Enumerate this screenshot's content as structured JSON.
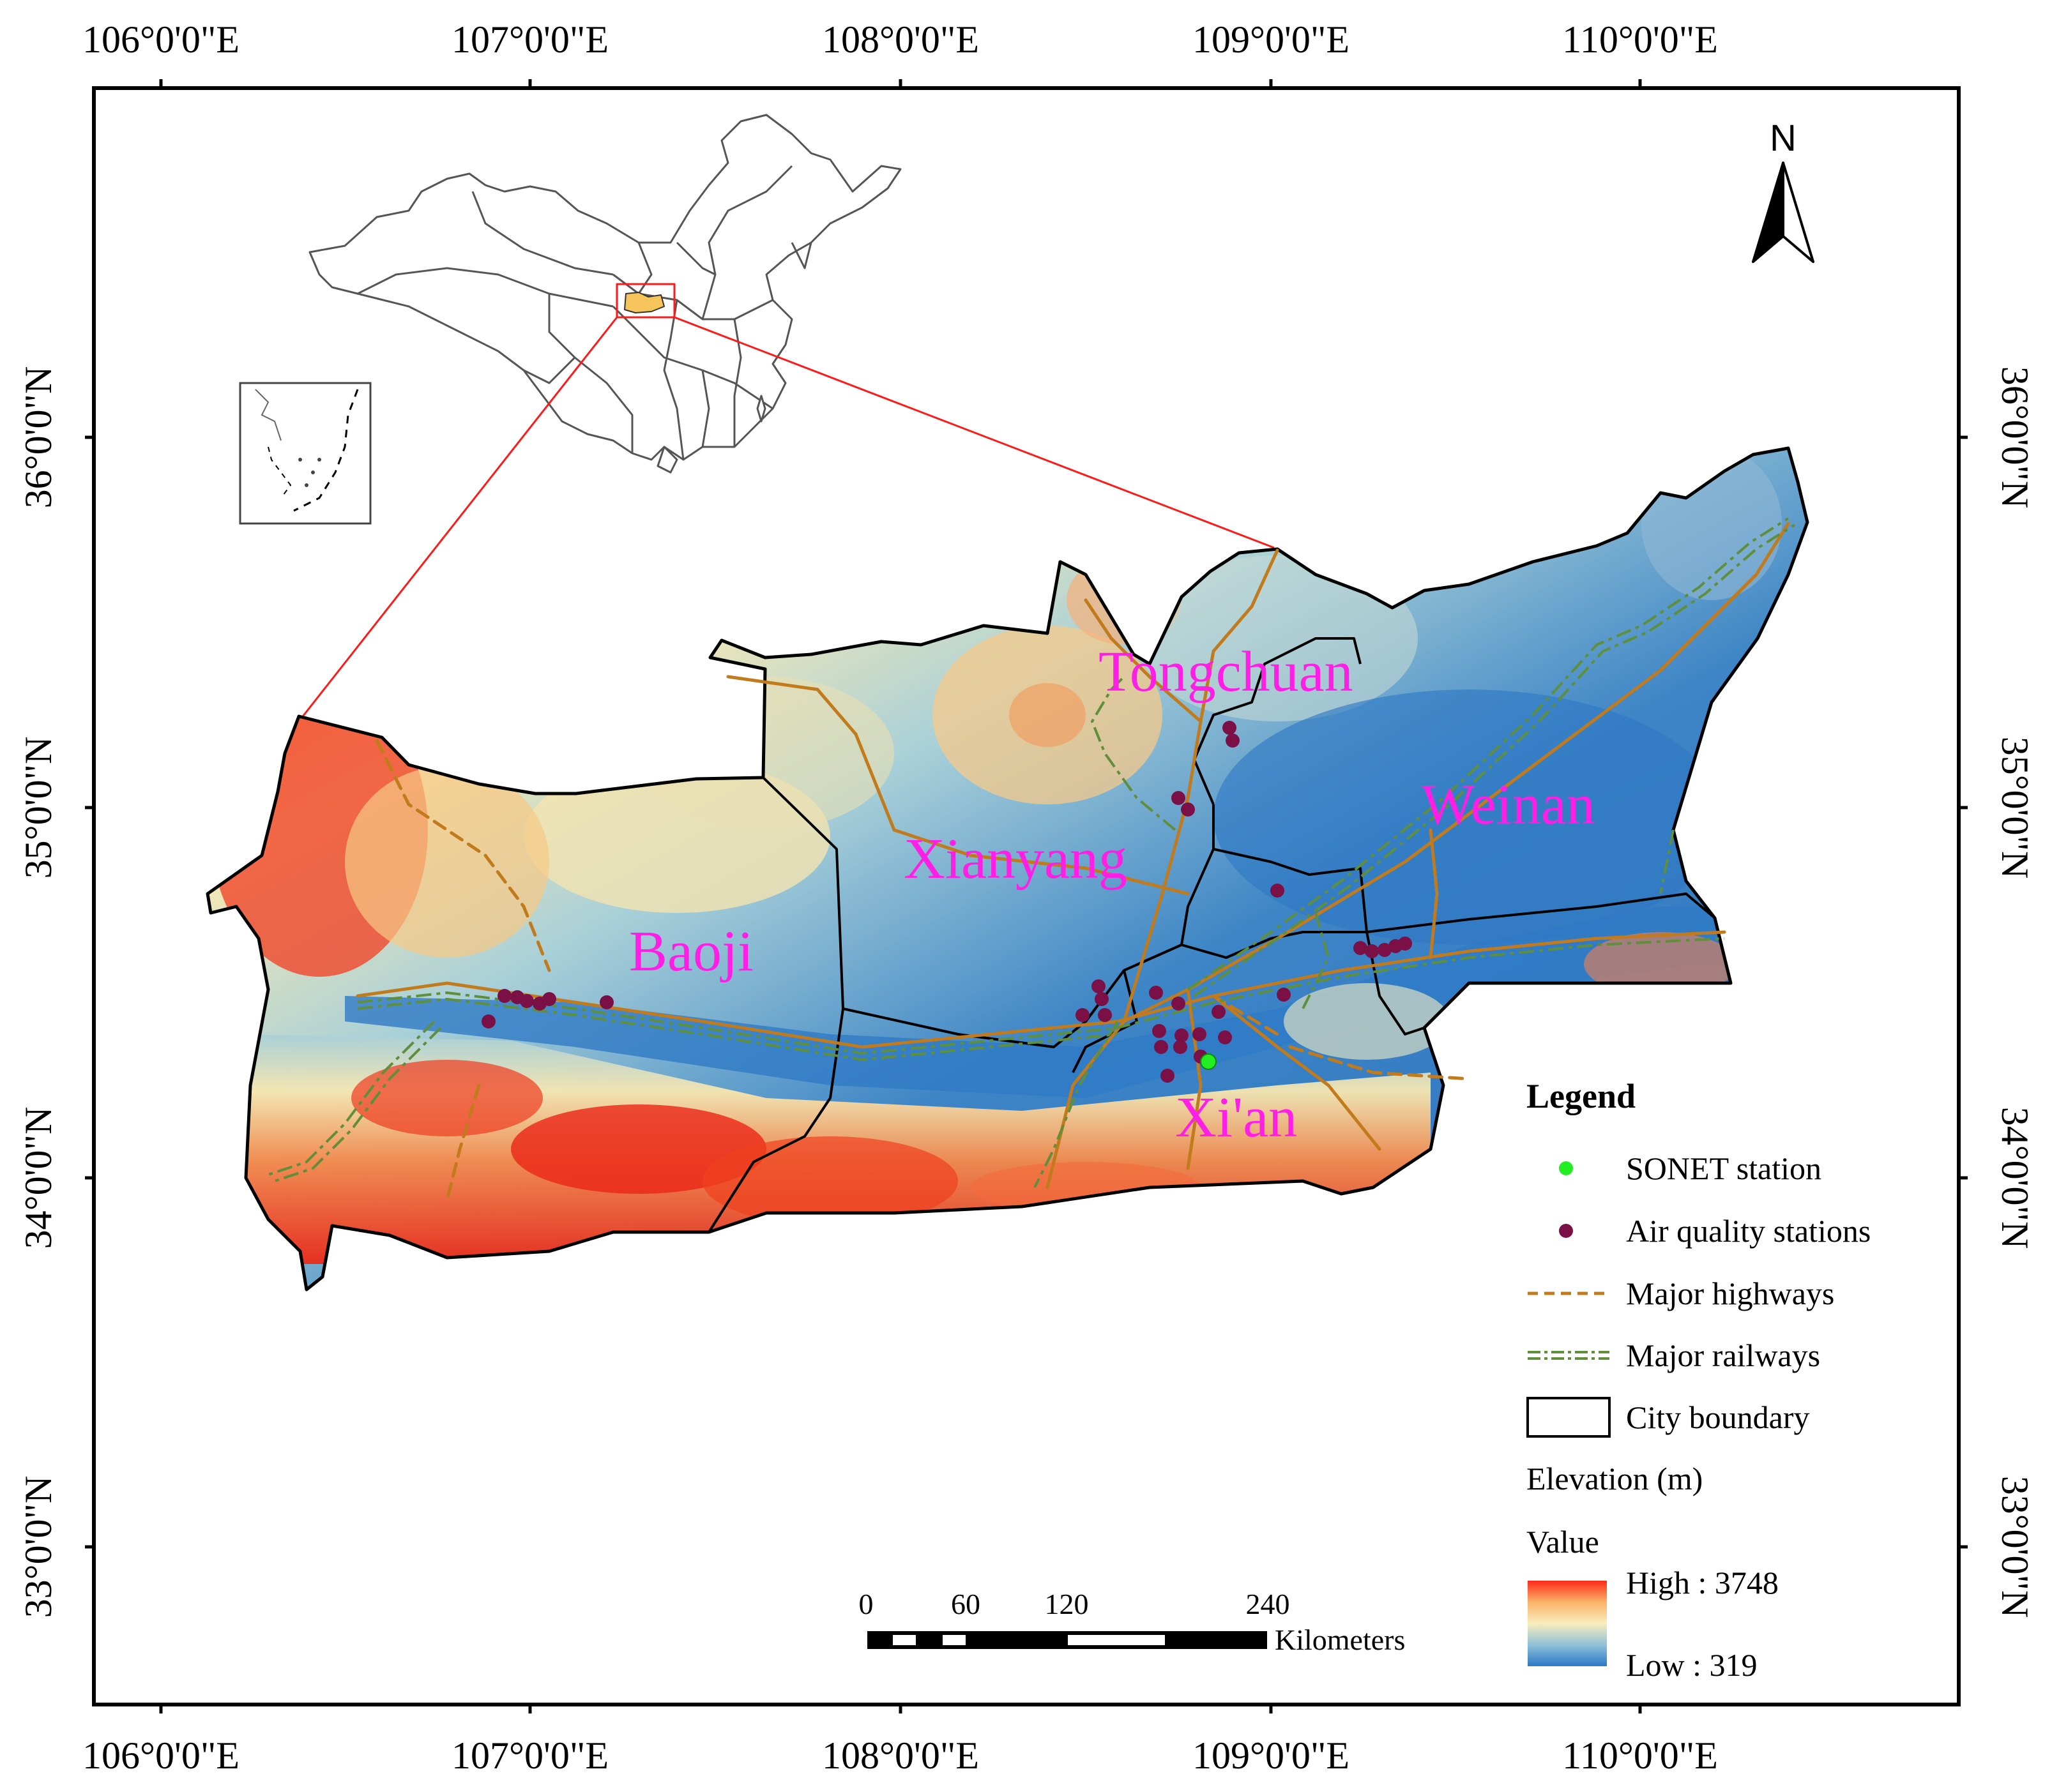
{
  "axes": {
    "longitude_labels": [
      "106°0'0\"E",
      "107°0'0\"E",
      "108°0'0\"E",
      "109°0'0\"E",
      "110°0'0\"E"
    ],
    "latitude_labels": [
      "36°0'0\"N",
      "35°0'0\"N",
      "34°0'0\"N",
      "33°0'0\"N"
    ]
  },
  "cities": [
    "Tongchuan",
    "Weinan",
    "Xianyang",
    "Baoji",
    "Xi'an"
  ],
  "north_arrow": {
    "label": "N",
    "icon": "north-arrow-icon"
  },
  "scale_bar": {
    "ticks": [
      "0",
      "60",
      "120",
      "240"
    ],
    "unit": "Kilometers"
  },
  "legend": {
    "title": "Legend",
    "items": [
      {
        "label": "SONET station",
        "symbol": "green-dot",
        "color": "#22ee22"
      },
      {
        "label": "Air quality stations",
        "symbol": "purple-dot",
        "color": "#7a1046"
      },
      {
        "label": "Major highways",
        "symbol": "dashed-line",
        "color": "#c17a1c"
      },
      {
        "label": "Major railways",
        "symbol": "dash-dot-line",
        "color": "#5f8f3a"
      },
      {
        "label": "City boundary",
        "symbol": "rectangle",
        "color": "#000000"
      }
    ],
    "elevation_title": "Elevation (m)",
    "value_title": "Value",
    "high_label": "High : 3748",
    "low_label": "Low : 319",
    "ramp_colors": [
      "#ff2a1a",
      "#fbb36a",
      "#f7eebc",
      "#8fc1d8",
      "#2c78c8"
    ]
  }
}
